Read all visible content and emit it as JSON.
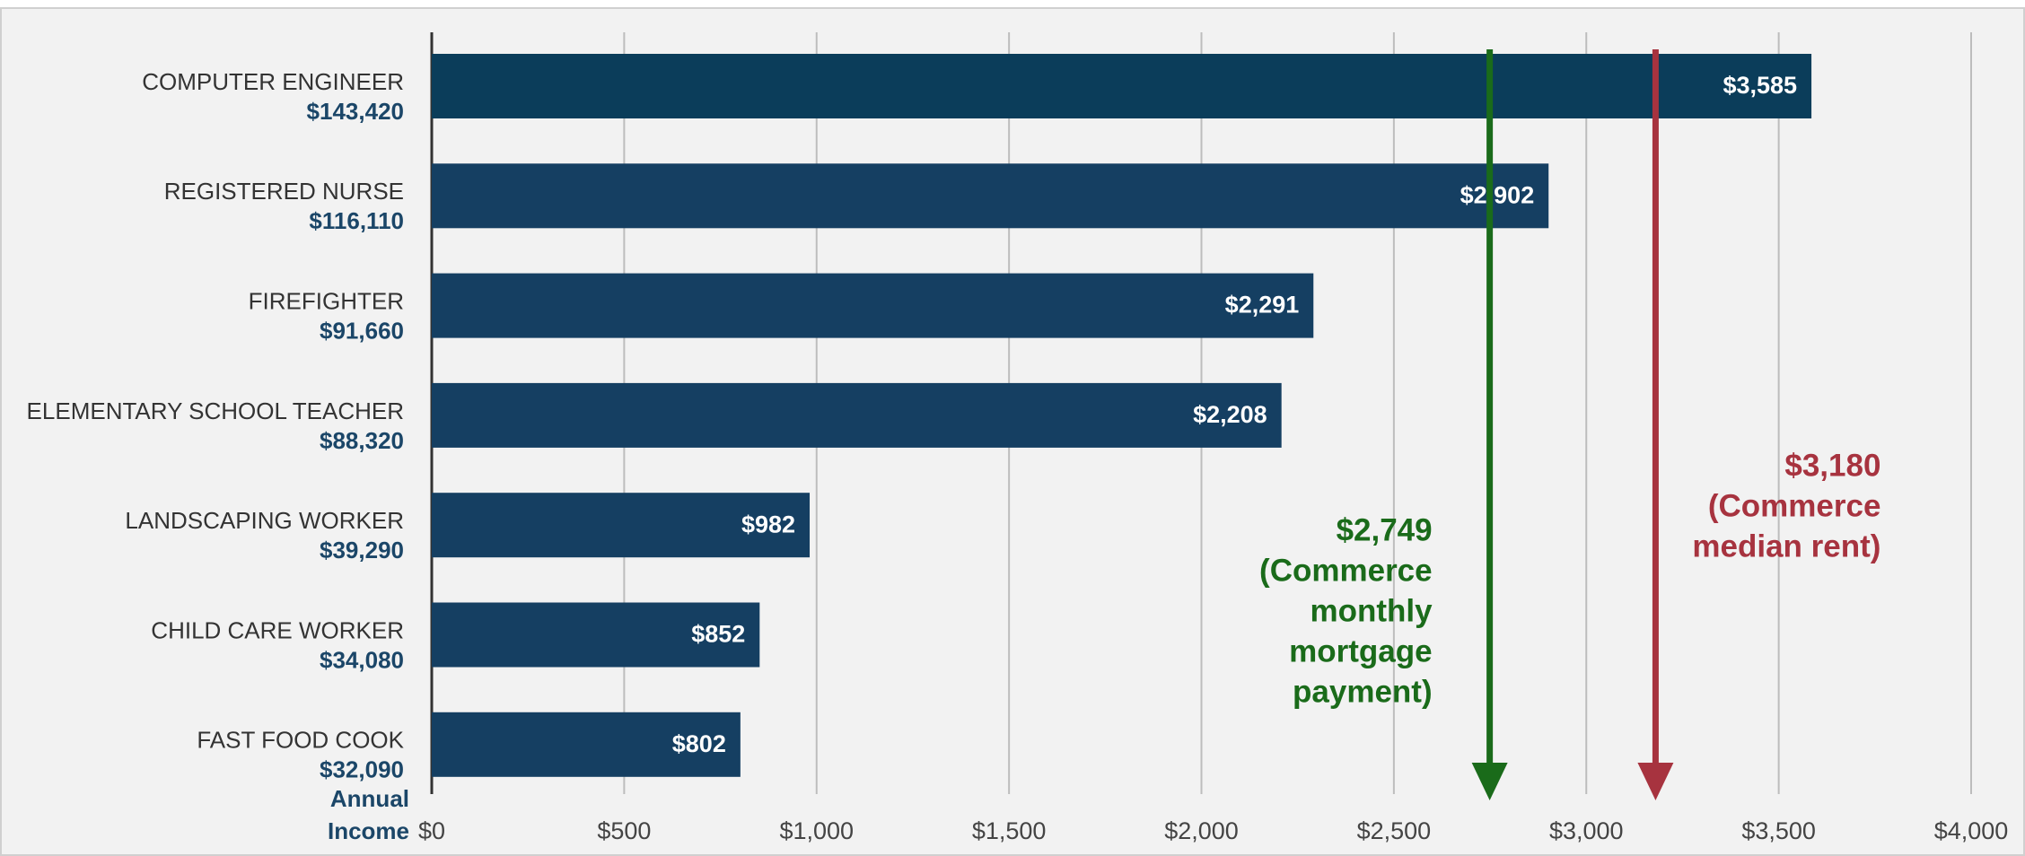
{
  "chart_data": {
    "type": "bar",
    "orientation": "horizontal",
    "categories": [
      "COMPUTER ENGINEER",
      "REGISTERED NURSE",
      "FIREFIGHTER",
      "ELEMENTARY SCHOOL TEACHER",
      "LANDSCAPING WORKER",
      "CHILD CARE WORKER",
      "FAST FOOD COOK"
    ],
    "annual_income": [
      "$143,420",
      "$116,110",
      "$91,660",
      "$88,320",
      "$39,290",
      "$34,080",
      "$32,090"
    ],
    "values": [
      3585,
      2902,
      2291,
      2208,
      982,
      852,
      802
    ],
    "value_labels": [
      "$3,585",
      "$2,902",
      "$2,291",
      "$2,208",
      "$982",
      "$852",
      "$802"
    ],
    "colors": [
      "#0b3d5a",
      "#153f62",
      "#153f62",
      "#153f62",
      "#153f62",
      "#153f62",
      "#153f62"
    ],
    "x_label": [
      "Annual",
      "Income"
    ],
    "xlim": [
      0,
      4000
    ],
    "xticks": [
      {
        "value": 0,
        "label": "$0"
      },
      {
        "value": 500,
        "label": "$500"
      },
      {
        "value": 1000,
        "label": "$1,000"
      },
      {
        "value": 1500,
        "label": "$1,500"
      },
      {
        "value": 2000,
        "label": "$2,000"
      },
      {
        "value": 2500,
        "label": "$2,500"
      },
      {
        "value": 3000,
        "label": "$3,000"
      },
      {
        "value": 3500,
        "label": "$3,500"
      },
      {
        "value": 4000,
        "label": "$4,000"
      }
    ],
    "grid": true,
    "reference_lines": [
      {
        "value": 2749,
        "color": "#1a6b1a",
        "label_lines": [
          "$2,749",
          "(Commerce",
          "monthly",
          "mortgage",
          "payment)"
        ]
      },
      {
        "value": 3180,
        "color": "#a7333f",
        "label_lines": [
          "$3,180",
          "(Commerce",
          "median rent)"
        ]
      }
    ]
  }
}
